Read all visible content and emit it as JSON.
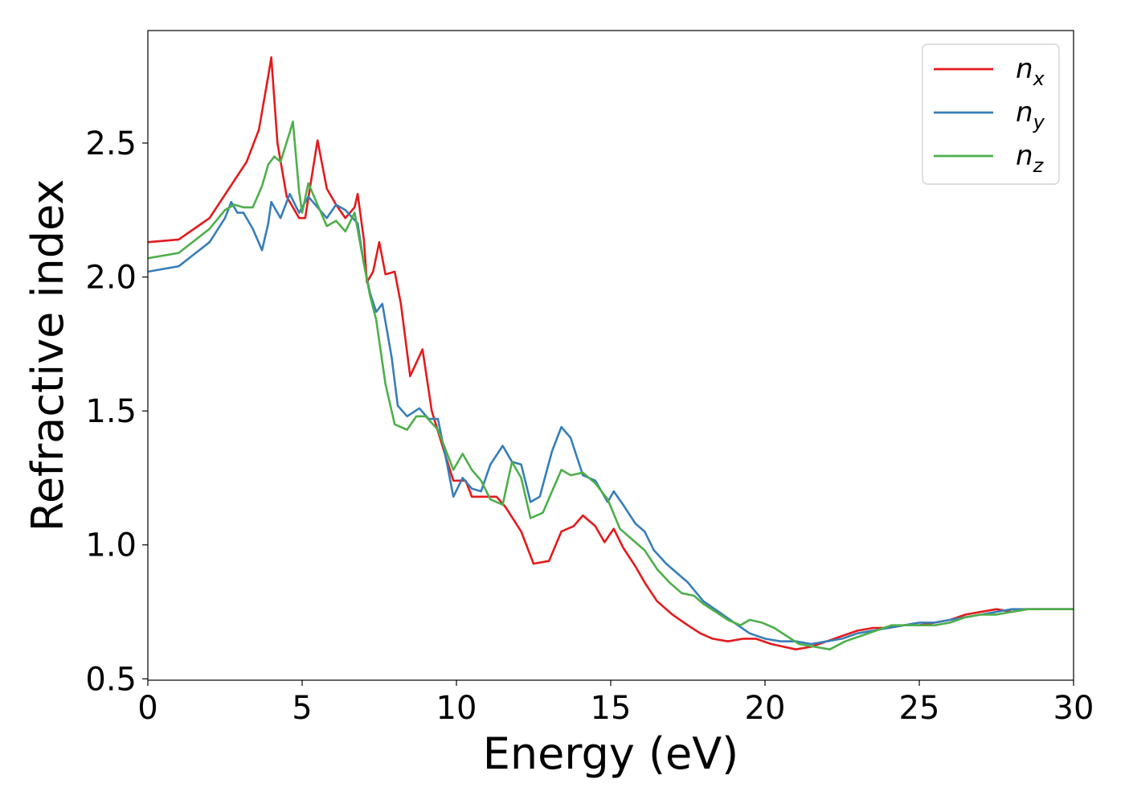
{
  "chart_data": {
    "type": "line",
    "title": "",
    "xlabel": "Energy (eV)",
    "ylabel": "Refractive index",
    "xlim": [
      0,
      30
    ],
    "ylim": [
      0.495,
      2.92
    ],
    "x_ticks": [
      0,
      5,
      10,
      15,
      20,
      25,
      30
    ],
    "x_tick_labels": [
      "0",
      "5",
      "10",
      "15",
      "20",
      "25",
      "30"
    ],
    "y_ticks": [
      0.5,
      1.0,
      1.5,
      2.0,
      2.5
    ],
    "y_tick_labels": [
      "0.5",
      "1.0",
      "1.5",
      "2.0",
      "2.5"
    ],
    "grid": false,
    "legend_position": "top-right",
    "series": [
      {
        "name": "n",
        "subscript": "x",
        "color": "#e41a1c",
        "points": [
          [
            0,
            2.13
          ],
          [
            1,
            2.14
          ],
          [
            2,
            2.22
          ],
          [
            2.8,
            2.36
          ],
          [
            3.2,
            2.43
          ],
          [
            3.6,
            2.55
          ],
          [
            3.9,
            2.75
          ],
          [
            4.0,
            2.82
          ],
          [
            4.2,
            2.5
          ],
          [
            4.5,
            2.3
          ],
          [
            4.9,
            2.22
          ],
          [
            5.1,
            2.22
          ],
          [
            5.4,
            2.44
          ],
          [
            5.5,
            2.51
          ],
          [
            5.8,
            2.33
          ],
          [
            6.1,
            2.27
          ],
          [
            6.4,
            2.22
          ],
          [
            6.7,
            2.26
          ],
          [
            6.8,
            2.31
          ],
          [
            7.0,
            2.14
          ],
          [
            7.1,
            1.98
          ],
          [
            7.3,
            2.02
          ],
          [
            7.5,
            2.13
          ],
          [
            7.7,
            2.01
          ],
          [
            8.0,
            2.02
          ],
          [
            8.2,
            1.9
          ],
          [
            8.5,
            1.63
          ],
          [
            8.7,
            1.68
          ],
          [
            8.9,
            1.73
          ],
          [
            9.2,
            1.5
          ],
          [
            9.6,
            1.35
          ],
          [
            9.9,
            1.24
          ],
          [
            10.3,
            1.24
          ],
          [
            10.5,
            1.18
          ],
          [
            10.9,
            1.18
          ],
          [
            11.3,
            1.18
          ],
          [
            11.6,
            1.14
          ],
          [
            12.1,
            1.05
          ],
          [
            12.5,
            0.93
          ],
          [
            13.0,
            0.94
          ],
          [
            13.4,
            1.05
          ],
          [
            13.8,
            1.07
          ],
          [
            14.1,
            1.11
          ],
          [
            14.5,
            1.07
          ],
          [
            14.8,
            1.01
          ],
          [
            15.1,
            1.06
          ],
          [
            15.4,
            0.99
          ],
          [
            15.8,
            0.92
          ],
          [
            16.1,
            0.86
          ],
          [
            16.5,
            0.79
          ],
          [
            17.0,
            0.74
          ],
          [
            17.5,
            0.7
          ],
          [
            17.9,
            0.67
          ],
          [
            18.3,
            0.65
          ],
          [
            18.8,
            0.64
          ],
          [
            19.3,
            0.65
          ],
          [
            19.7,
            0.65
          ],
          [
            20.2,
            0.63
          ],
          [
            20.6,
            0.62
          ],
          [
            21.0,
            0.61
          ],
          [
            21.5,
            0.62
          ],
          [
            22.0,
            0.64
          ],
          [
            22.5,
            0.66
          ],
          [
            23.0,
            0.68
          ],
          [
            23.5,
            0.69
          ],
          [
            24.0,
            0.69
          ],
          [
            24.5,
            0.7
          ],
          [
            25.0,
            0.7
          ],
          [
            25.5,
            0.71
          ],
          [
            26.0,
            0.72
          ],
          [
            26.5,
            0.74
          ],
          [
            27.0,
            0.75
          ],
          [
            27.5,
            0.76
          ],
          [
            28.0,
            0.75
          ],
          [
            28.5,
            0.76
          ],
          [
            29.0,
            0.76
          ],
          [
            29.5,
            0.76
          ],
          [
            30.0,
            0.76
          ]
        ]
      },
      {
        "name": "n",
        "subscript": "y",
        "color": "#377eb8",
        "points": [
          [
            0,
            2.02
          ],
          [
            1,
            2.04
          ],
          [
            2,
            2.13
          ],
          [
            2.5,
            2.22
          ],
          [
            2.7,
            2.28
          ],
          [
            2.9,
            2.24
          ],
          [
            3.1,
            2.24
          ],
          [
            3.4,
            2.18
          ],
          [
            3.7,
            2.1
          ],
          [
            3.9,
            2.2
          ],
          [
            4.0,
            2.28
          ],
          [
            4.3,
            2.22
          ],
          [
            4.6,
            2.31
          ],
          [
            4.9,
            2.24
          ],
          [
            5.2,
            2.3
          ],
          [
            5.5,
            2.26
          ],
          [
            5.8,
            2.22
          ],
          [
            6.1,
            2.27
          ],
          [
            6.4,
            2.25
          ],
          [
            6.8,
            2.2
          ],
          [
            7.0,
            2.05
          ],
          [
            7.2,
            1.94
          ],
          [
            7.4,
            1.87
          ],
          [
            7.6,
            1.9
          ],
          [
            7.9,
            1.7
          ],
          [
            8.1,
            1.52
          ],
          [
            8.4,
            1.48
          ],
          [
            8.8,
            1.51
          ],
          [
            9.1,
            1.47
          ],
          [
            9.4,
            1.47
          ],
          [
            9.7,
            1.3
          ],
          [
            9.9,
            1.18
          ],
          [
            10.2,
            1.25
          ],
          [
            10.5,
            1.21
          ],
          [
            10.8,
            1.2
          ],
          [
            11.1,
            1.3
          ],
          [
            11.5,
            1.37
          ],
          [
            11.8,
            1.31
          ],
          [
            12.1,
            1.3
          ],
          [
            12.4,
            1.16
          ],
          [
            12.7,
            1.18
          ],
          [
            13.1,
            1.35
          ],
          [
            13.4,
            1.44
          ],
          [
            13.7,
            1.4
          ],
          [
            14.1,
            1.26
          ],
          [
            14.5,
            1.24
          ],
          [
            14.9,
            1.16
          ],
          [
            15.1,
            1.2
          ],
          [
            15.4,
            1.15
          ],
          [
            15.8,
            1.08
          ],
          [
            16.1,
            1.05
          ],
          [
            16.4,
            0.98
          ],
          [
            16.8,
            0.93
          ],
          [
            17.1,
            0.9
          ],
          [
            17.5,
            0.86
          ],
          [
            18.0,
            0.79
          ],
          [
            18.5,
            0.75
          ],
          [
            19.0,
            0.71
          ],
          [
            19.5,
            0.67
          ],
          [
            20.0,
            0.65
          ],
          [
            20.5,
            0.64
          ],
          [
            21.0,
            0.64
          ],
          [
            21.5,
            0.63
          ],
          [
            22.0,
            0.64
          ],
          [
            22.5,
            0.65
          ],
          [
            23.0,
            0.67
          ],
          [
            23.5,
            0.68
          ],
          [
            24.0,
            0.69
          ],
          [
            24.5,
            0.7
          ],
          [
            25.0,
            0.71
          ],
          [
            25.5,
            0.71
          ],
          [
            26.0,
            0.72
          ],
          [
            26.5,
            0.73
          ],
          [
            27.0,
            0.74
          ],
          [
            27.5,
            0.75
          ],
          [
            28.0,
            0.76
          ],
          [
            28.5,
            0.76
          ],
          [
            29.0,
            0.76
          ],
          [
            29.5,
            0.76
          ],
          [
            30.0,
            0.76
          ]
        ]
      },
      {
        "name": "n",
        "subscript": "z",
        "color": "#4daf4a",
        "points": [
          [
            0,
            2.07
          ],
          [
            1,
            2.09
          ],
          [
            2,
            2.18
          ],
          [
            2.5,
            2.25
          ],
          [
            2.8,
            2.27
          ],
          [
            3.1,
            2.26
          ],
          [
            3.4,
            2.26
          ],
          [
            3.7,
            2.34
          ],
          [
            3.9,
            2.42
          ],
          [
            4.1,
            2.45
          ],
          [
            4.3,
            2.43
          ],
          [
            4.6,
            2.54
          ],
          [
            4.7,
            2.58
          ],
          [
            4.9,
            2.32
          ],
          [
            5.0,
            2.24
          ],
          [
            5.2,
            2.35
          ],
          [
            5.5,
            2.27
          ],
          [
            5.8,
            2.19
          ],
          [
            6.1,
            2.21
          ],
          [
            6.4,
            2.17
          ],
          [
            6.7,
            2.24
          ],
          [
            7.0,
            2.05
          ],
          [
            7.2,
            1.93
          ],
          [
            7.4,
            1.84
          ],
          [
            7.7,
            1.6
          ],
          [
            8.0,
            1.45
          ],
          [
            8.4,
            1.43
          ],
          [
            8.7,
            1.48
          ],
          [
            9.0,
            1.48
          ],
          [
            9.4,
            1.43
          ],
          [
            9.7,
            1.34
          ],
          [
            9.9,
            1.28
          ],
          [
            10.2,
            1.34
          ],
          [
            10.5,
            1.28
          ],
          [
            10.8,
            1.24
          ],
          [
            11.1,
            1.17
          ],
          [
            11.5,
            1.15
          ],
          [
            11.8,
            1.31
          ],
          [
            12.1,
            1.25
          ],
          [
            12.4,
            1.1
          ],
          [
            12.8,
            1.12
          ],
          [
            13.1,
            1.2
          ],
          [
            13.4,
            1.28
          ],
          [
            13.7,
            1.26
          ],
          [
            14.1,
            1.27
          ],
          [
            14.5,
            1.23
          ],
          [
            14.9,
            1.17
          ],
          [
            15.3,
            1.06
          ],
          [
            15.7,
            1.02
          ],
          [
            16.1,
            0.98
          ],
          [
            16.5,
            0.91
          ],
          [
            16.9,
            0.86
          ],
          [
            17.3,
            0.82
          ],
          [
            17.7,
            0.81
          ],
          [
            18.0,
            0.78
          ],
          [
            18.4,
            0.75
          ],
          [
            18.8,
            0.72
          ],
          [
            19.2,
            0.7
          ],
          [
            19.5,
            0.72
          ],
          [
            19.9,
            0.71
          ],
          [
            20.3,
            0.69
          ],
          [
            20.7,
            0.66
          ],
          [
            21.1,
            0.63
          ],
          [
            21.6,
            0.62
          ],
          [
            22.1,
            0.61
          ],
          [
            22.6,
            0.64
          ],
          [
            23.1,
            0.66
          ],
          [
            23.6,
            0.68
          ],
          [
            24.1,
            0.7
          ],
          [
            24.6,
            0.7
          ],
          [
            25.0,
            0.7
          ],
          [
            25.5,
            0.7
          ],
          [
            26.0,
            0.71
          ],
          [
            26.5,
            0.73
          ],
          [
            27.0,
            0.74
          ],
          [
            27.5,
            0.74
          ],
          [
            28.0,
            0.75
          ],
          [
            28.5,
            0.76
          ],
          [
            29.0,
            0.76
          ],
          [
            29.5,
            0.76
          ],
          [
            30.0,
            0.76
          ]
        ]
      }
    ]
  }
}
